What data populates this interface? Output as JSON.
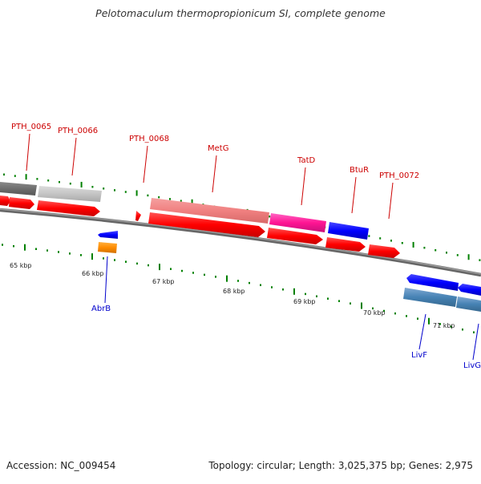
{
  "title": "Pelotomaculum thermopropionicum SI, complete genome",
  "footer": {
    "accession": "Accession: NC_009454",
    "topology": "Topology: circular; Length: 3,025,375 bp; Genes: 2,975"
  },
  "colors": {
    "label_top": "#cc0000",
    "label_bottom": "#0000cc",
    "tick": "#008000",
    "backbone": "#888888"
  },
  "kbp_labels": [
    "65 kbp",
    "66 kbp",
    "67 kbp",
    "68 kbp",
    "69 kbp",
    "70 kbp",
    "71 kbp"
  ],
  "top_labels": [
    "PTH_0065",
    "PTH_0066",
    "PTH_0068",
    "MetG",
    "TatD",
    "BtuR",
    "PTH_0072"
  ],
  "bottom_labels": [
    "AbrB",
    "LivF",
    "LivG"
  ]
}
